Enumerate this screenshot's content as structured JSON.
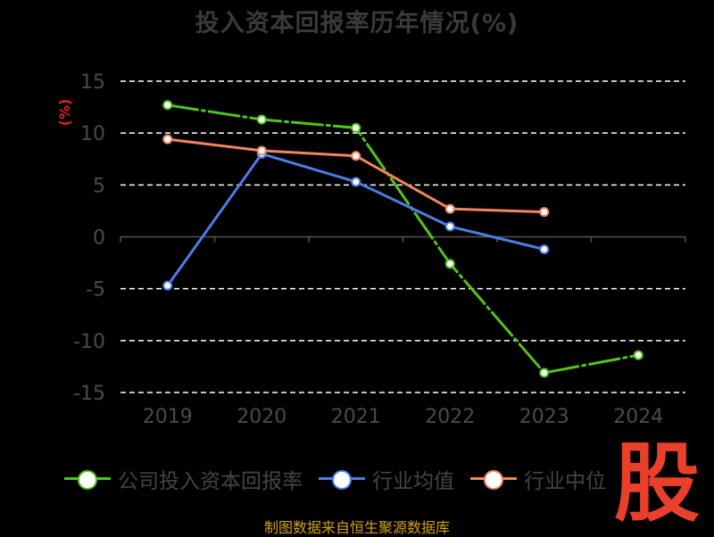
{
  "chart_data": {
    "type": "line",
    "title": "投入资本回报率历年情况(%)",
    "ylabel": "(%)",
    "categories": [
      "2019",
      "2020",
      "2021",
      "2022",
      "2023",
      "2024"
    ],
    "ylim": [
      -15,
      15
    ],
    "yticks": [
      15,
      10,
      5,
      0,
      -5,
      -10,
      -15
    ],
    "grid": true,
    "legend_position": "bottom",
    "series": [
      {
        "name": "公司投入资本回报率",
        "color": "#52c41a",
        "values": [
          12.7,
          11.3,
          10.5,
          -2.6,
          -13.1,
          -11.4
        ]
      },
      {
        "name": "行业均值",
        "color": "#4a7ee6",
        "values": [
          -4.7,
          8.0,
          5.3,
          1.0,
          -1.2,
          null
        ]
      },
      {
        "name": "行业中位",
        "color": "#f4845f",
        "values": [
          9.4,
          8.3,
          7.8,
          2.7,
          2.4,
          null
        ]
      }
    ]
  },
  "source": "制图数据来自恒生聚源数据库",
  "logo_text": "股"
}
